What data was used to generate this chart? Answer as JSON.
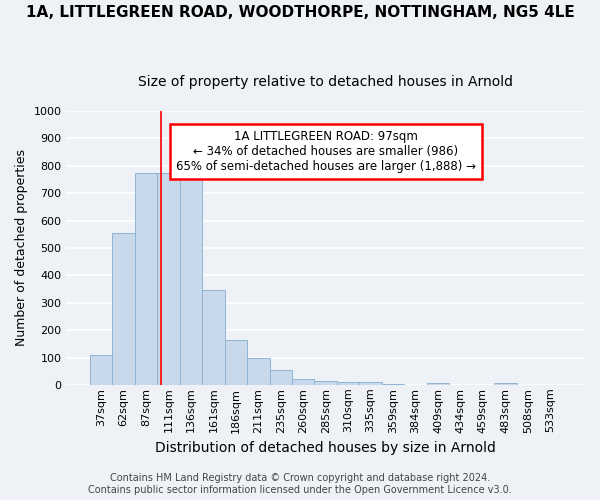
{
  "title_line1": "1A, LITTLEGREEN ROAD, WOODTHORPE, NOTTINGHAM, NG5 4LE",
  "title_line2": "Size of property relative to detached houses in Arnold",
  "xlabel": "Distribution of detached houses by size in Arnold",
  "ylabel": "Number of detached properties",
  "categories": [
    "37sqm",
    "62sqm",
    "87sqm",
    "111sqm",
    "136sqm",
    "161sqm",
    "186sqm",
    "211sqm",
    "235sqm",
    "260sqm",
    "285sqm",
    "310sqm",
    "335sqm",
    "359sqm",
    "384sqm",
    "409sqm",
    "434sqm",
    "459sqm",
    "483sqm",
    "508sqm",
    "533sqm"
  ],
  "values": [
    110,
    555,
    775,
    775,
    760,
    345,
    163,
    97,
    53,
    20,
    15,
    10,
    10,
    5,
    0,
    8,
    0,
    0,
    8,
    0,
    0
  ],
  "bar_color": "#c8d9eb",
  "bar_edge_color": "#8fb4d4",
  "red_line_x": 2.67,
  "annotation_text": "1A LITTLEGREEN ROAD: 97sqm\n← 34% of detached houses are smaller (986)\n65% of semi-detached houses are larger (1,888) →",
  "annotation_box_color": "white",
  "annotation_box_edge_color": "red",
  "ylim": [
    0,
    1000
  ],
  "yticks": [
    0,
    100,
    200,
    300,
    400,
    500,
    600,
    700,
    800,
    900,
    1000
  ],
  "footer_line1": "Contains HM Land Registry data © Crown copyright and database right 2024.",
  "footer_line2": "Contains public sector information licensed under the Open Government Licence v3.0.",
  "background_color": "#eef2f7",
  "grid_color": "#ffffff",
  "title1_fontsize": 11,
  "title2_fontsize": 10,
  "xlabel_fontsize": 10,
  "ylabel_fontsize": 9,
  "tick_fontsize": 8,
  "footer_fontsize": 7,
  "annot_fontsize": 8.5
}
